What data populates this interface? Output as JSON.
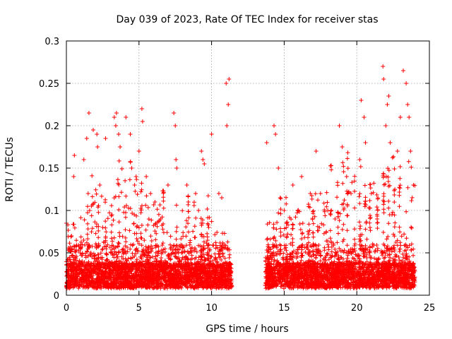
{
  "chart_data": {
    "type": "scatter",
    "title": "Day 039 of 2023, Rate Of TEC Index for receiver stas",
    "xlabel": "GPS time / hours",
    "ylabel": "ROTI / TECUs",
    "xlim": [
      0,
      25
    ],
    "ylim": [
      0,
      0.3
    ],
    "xticks": [
      0,
      5,
      10,
      15,
      20,
      25
    ],
    "yticks": [
      0,
      0.05,
      0.1,
      0.15,
      0.2,
      0.25,
      0.3
    ],
    "xtick_labels": [
      "0",
      "5",
      "10",
      "15",
      "20",
      "25"
    ],
    "ytick_labels": [
      "0",
      "0.05",
      "0.1",
      "0.15",
      "0.2",
      "0.25",
      "0.3"
    ],
    "grid": true,
    "marker": "plus",
    "color": "#ff0000",
    "data_gap_hours": [
      11.4,
      13.7
    ],
    "data_ranges_hours": [
      [
        0,
        11.4
      ],
      [
        13.7,
        24
      ]
    ],
    "series": [
      {
        "points": [
          [
            0.0,
            0.085
          ],
          [
            0.1,
            0.083
          ],
          [
            0.3,
            0.052
          ],
          [
            0.35,
            0.07
          ],
          [
            0.5,
            0.14
          ],
          [
            0.55,
            0.165
          ],
          [
            1.2,
            0.16
          ],
          [
            1.4,
            0.185
          ],
          [
            1.5,
            0.12
          ],
          [
            1.6,
            0.1
          ],
          [
            1.55,
            0.215
          ],
          [
            1.85,
            0.195
          ],
          [
            2.1,
            0.19
          ],
          [
            2.15,
            0.175
          ],
          [
            2.3,
            0.13
          ],
          [
            2.5,
            0.08
          ],
          [
            2.7,
            0.185
          ],
          [
            3.3,
            0.21
          ],
          [
            3.4,
            0.2
          ],
          [
            3.45,
            0.215
          ],
          [
            3.6,
            0.19
          ],
          [
            3.7,
            0.175
          ],
          [
            4.1,
            0.21
          ],
          [
            4.4,
            0.19
          ],
          [
            4.5,
            0.15
          ],
          [
            4.7,
            0.13
          ],
          [
            4.8,
            0.14
          ],
          [
            5.0,
            0.17
          ],
          [
            5.2,
            0.22
          ],
          [
            5.25,
            0.205
          ],
          [
            5.5,
            0.14
          ],
          [
            5.8,
            0.12
          ],
          [
            6.1,
            0.11
          ],
          [
            6.5,
            0.09
          ],
          [
            7.0,
            0.13
          ],
          [
            7.4,
            0.215
          ],
          [
            7.5,
            0.2
          ],
          [
            7.55,
            0.16
          ],
          [
            7.6,
            0.15
          ],
          [
            8.3,
            0.13
          ],
          [
            8.4,
            0.11
          ],
          [
            8.9,
            0.12
          ],
          [
            9.1,
            0.1
          ],
          [
            9.3,
            0.17
          ],
          [
            9.4,
            0.16
          ],
          [
            9.5,
            0.155
          ],
          [
            9.8,
            0.08
          ],
          [
            10.0,
            0.19
          ],
          [
            10.5,
            0.12
          ],
          [
            10.7,
            0.115
          ],
          [
            11.0,
            0.25
          ],
          [
            11.05,
            0.2
          ],
          [
            11.15,
            0.225
          ],
          [
            11.2,
            0.255
          ],
          [
            13.8,
            0.18
          ],
          [
            14.3,
            0.2
          ],
          [
            14.4,
            0.19
          ],
          [
            14.6,
            0.15
          ],
          [
            15.0,
            0.1
          ],
          [
            15.6,
            0.13
          ],
          [
            16.2,
            0.14
          ],
          [
            16.8,
            0.12
          ],
          [
            17.2,
            0.17
          ],
          [
            17.5,
            0.12
          ],
          [
            18.0,
            0.1
          ],
          [
            18.5,
            0.09
          ],
          [
            18.8,
            0.2
          ],
          [
            19.0,
            0.175
          ],
          [
            19.3,
            0.14
          ],
          [
            19.6,
            0.12
          ],
          [
            20.2,
            0.16
          ],
          [
            20.3,
            0.23
          ],
          [
            20.5,
            0.21
          ],
          [
            20.6,
            0.18
          ],
          [
            21.0,
            0.12
          ],
          [
            21.4,
            0.09
          ],
          [
            21.8,
            0.27
          ],
          [
            21.85,
            0.255
          ],
          [
            22.0,
            0.2
          ],
          [
            22.1,
            0.225
          ],
          [
            22.2,
            0.235
          ],
          [
            22.3,
            0.18
          ],
          [
            22.8,
            0.17
          ],
          [
            23.0,
            0.21
          ],
          [
            23.2,
            0.265
          ],
          [
            23.4,
            0.25
          ],
          [
            23.5,
            0.225
          ],
          [
            23.6,
            0.21
          ],
          [
            23.7,
            0.17
          ],
          [
            23.9,
            0.13
          ]
        ]
      }
    ],
    "band_envelope": {
      "x_hours": [
        0,
        1,
        2,
        3,
        4,
        5,
        6,
        7,
        8,
        9,
        10,
        11,
        11.4,
        13.7,
        14,
        15,
        16,
        17,
        18,
        19,
        20,
        21,
        22,
        23,
        24
      ],
      "y_max": [
        0.06,
        0.09,
        0.12,
        0.1,
        0.15,
        0.13,
        0.11,
        0.09,
        0.08,
        0.1,
        0.09,
        0.06,
        0.05,
        0.07,
        0.09,
        0.1,
        0.09,
        0.11,
        0.12,
        0.14,
        0.15,
        0.13,
        0.15,
        0.16,
        0.14
      ]
    }
  }
}
